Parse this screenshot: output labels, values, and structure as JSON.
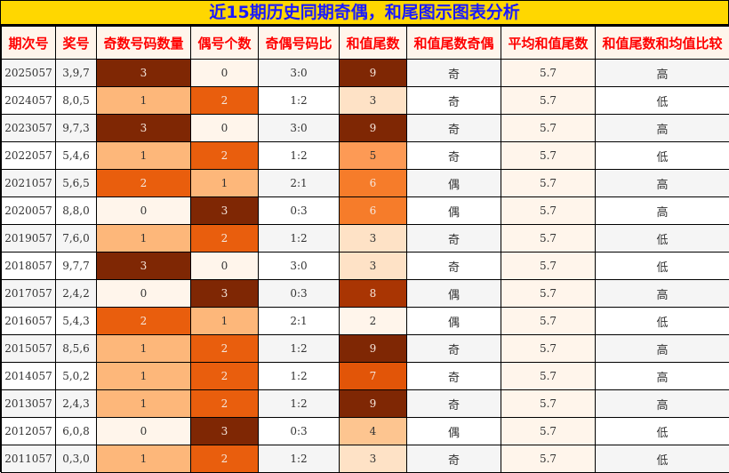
{
  "title": "近15期历史同期奇偶，和尾图示图表分析",
  "headers": [
    "期次号",
    "奖号",
    "奇数号码数量",
    "偶号个数",
    "奇偶号码比",
    "和值尾数",
    "和值尾数奇偶",
    "平均和值尾数",
    "和值尾数和均值比较"
  ],
  "colors": {
    "count": {
      "0": "#fff5eb",
      "1": "#fdb77a",
      "2": "#e95e0d",
      "3": "#7f2704"
    },
    "tail": {
      "2": "#fff5eb",
      "3": "#fee2c6",
      "4": "#fdc590",
      "5": "#fd9a55",
      "6": "#f67c2a",
      "7": "#e25508",
      "8": "#a93503",
      "9": "#7f2704"
    }
  },
  "rows": [
    [
      "2025057",
      "3,9,7",
      "3",
      "0",
      "3:0",
      "9",
      "奇",
      "5.7",
      "高"
    ],
    [
      "2024057",
      "8,0,5",
      "1",
      "2",
      "1:2",
      "3",
      "奇",
      "5.7",
      "低"
    ],
    [
      "2023057",
      "9,7,3",
      "3",
      "0",
      "3:0",
      "9",
      "奇",
      "5.7",
      "高"
    ],
    [
      "2022057",
      "5,4,6",
      "1",
      "2",
      "1:2",
      "5",
      "奇",
      "5.7",
      "低"
    ],
    [
      "2021057",
      "5,6,5",
      "2",
      "1",
      "2:1",
      "6",
      "偶",
      "5.7",
      "高"
    ],
    [
      "2020057",
      "8,8,0",
      "0",
      "3",
      "0:3",
      "6",
      "偶",
      "5.7",
      "高"
    ],
    [
      "2019057",
      "7,6,0",
      "1",
      "2",
      "1:2",
      "3",
      "奇",
      "5.7",
      "低"
    ],
    [
      "2018057",
      "9,7,7",
      "3",
      "0",
      "3:0",
      "3",
      "奇",
      "5.7",
      "低"
    ],
    [
      "2017057",
      "2,4,2",
      "0",
      "3",
      "0:3",
      "8",
      "偶",
      "5.7",
      "高"
    ],
    [
      "2016057",
      "5,4,3",
      "2",
      "1",
      "2:1",
      "2",
      "偶",
      "5.7",
      "低"
    ],
    [
      "2015057",
      "8,5,6",
      "1",
      "2",
      "1:2",
      "9",
      "奇",
      "5.7",
      "高"
    ],
    [
      "2014057",
      "5,0,2",
      "1",
      "2",
      "1:2",
      "7",
      "奇",
      "5.7",
      "高"
    ],
    [
      "2013057",
      "2,4,3",
      "1",
      "2",
      "1:2",
      "9",
      "奇",
      "5.7",
      "高"
    ],
    [
      "2012057",
      "6,0,8",
      "0",
      "3",
      "0:3",
      "4",
      "偶",
      "5.7",
      "低"
    ],
    [
      "2011057",
      "0,3,0",
      "1",
      "2",
      "1:2",
      "3",
      "奇",
      "5.7",
      "低"
    ]
  ]
}
